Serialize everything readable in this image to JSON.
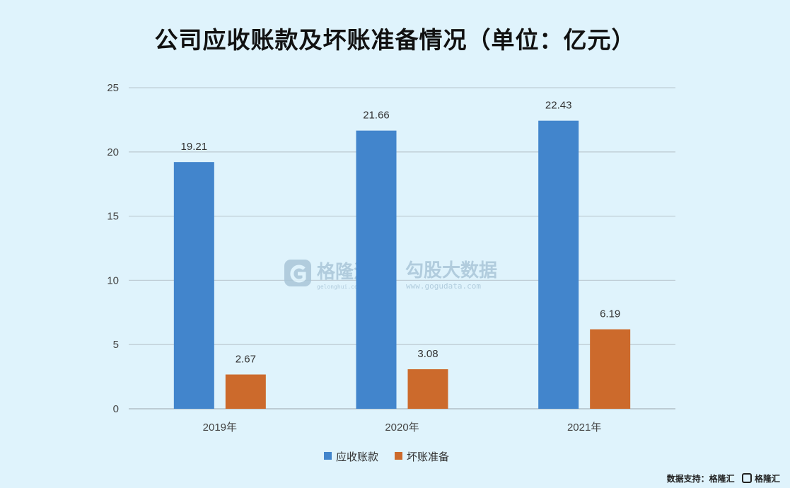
{
  "chart_data": {
    "type": "bar",
    "title": "公司应收账款及坏账准备情况（单位：亿元）",
    "categories": [
      "2019年",
      "2020年",
      "2021年"
    ],
    "series": [
      {
        "name": "应收账款",
        "values": [
          19.21,
          21.66,
          22.43
        ],
        "labels": [
          "19.21",
          "21.66",
          "22.43"
        ],
        "color": "#4285cc"
      },
      {
        "name": "坏账准备",
        "values": [
          2.67,
          3.08,
          6.19
        ],
        "labels": [
          "2.67",
          "3.08",
          "6.19"
        ],
        "color": "#cc6a2c"
      }
    ],
    "ylim": [
      0,
      25
    ],
    "yticks": [
      "0",
      "5",
      "10",
      "15",
      "20",
      "25"
    ],
    "grid": true,
    "legend": "bottom"
  },
  "watermark": {
    "brand": "格隆汇",
    "brand_url": "gelonghui.com",
    "partner": "勾股大数据",
    "partner_url": "www.gogudata.com"
  },
  "source": {
    "label": "数据支持：",
    "brand": "格隆汇",
    "footer_brand": "格隆汇"
  }
}
